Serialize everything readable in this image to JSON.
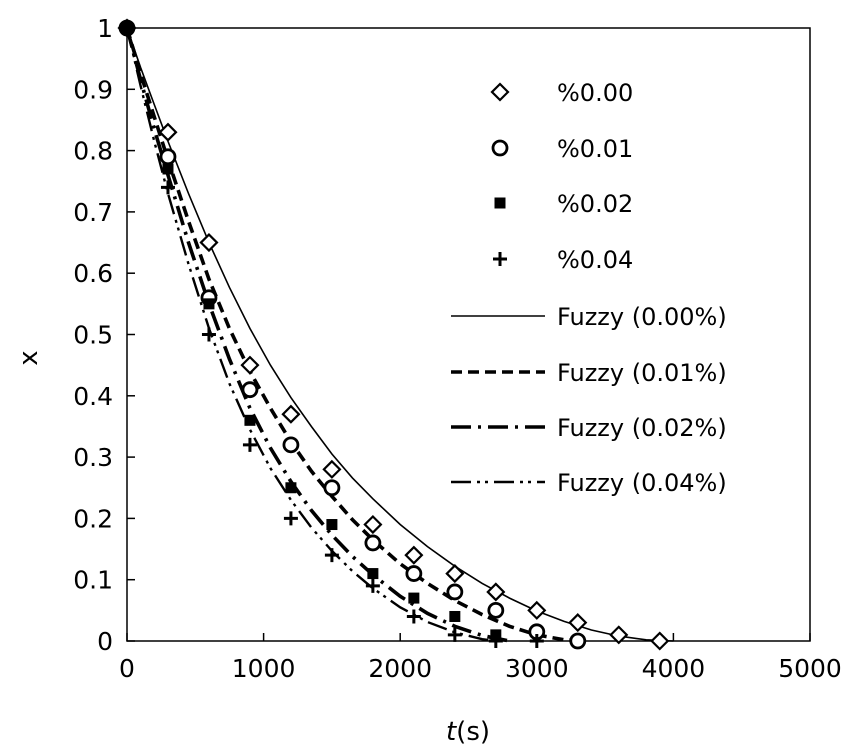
{
  "chart_data": {
    "type": "scatter",
    "xlabel_italic": "t",
    "xlabel_unit": "(s)",
    "ylabel": "x",
    "xlim": [
      0,
      5000
    ],
    "ylim": [
      0,
      1
    ],
    "xticks": [
      0,
      1000,
      2000,
      3000,
      4000,
      5000
    ],
    "yticks": [
      0,
      0.1,
      0.2,
      0.3,
      0.4,
      0.5,
      0.6,
      0.7,
      0.8,
      0.9,
      1
    ],
    "ytick_labels": [
      "0",
      "0.1",
      "0.2",
      "0.3",
      "0.4",
      "0.5",
      "0.6",
      "0.7",
      "0.8",
      "0.9",
      "1"
    ],
    "grid": false,
    "legend_position": "top-right",
    "series": [
      {
        "name": "%0.00",
        "marker": "diamond",
        "x": [
          0,
          300,
          600,
          900,
          1200,
          1500,
          1800,
          2100,
          2400,
          2700,
          3000,
          3300,
          3600,
          3900
        ],
        "y": [
          1.0,
          0.83,
          0.65,
          0.45,
          0.37,
          0.28,
          0.19,
          0.14,
          0.11,
          0.08,
          0.05,
          0.03,
          0.01,
          0.0
        ]
      },
      {
        "name": "%0.01",
        "marker": "circle",
        "x": [
          0,
          300,
          600,
          900,
          1200,
          1500,
          1800,
          2100,
          2400,
          2700,
          3000,
          3300
        ],
        "y": [
          1.0,
          0.79,
          0.56,
          0.41,
          0.32,
          0.25,
          0.16,
          0.11,
          0.08,
          0.05,
          0.015,
          0.0
        ]
      },
      {
        "name": "%0.02",
        "marker": "square",
        "x": [
          0,
          300,
          600,
          900,
          1200,
          1500,
          1800,
          2100,
          2400,
          2700
        ],
        "y": [
          1.0,
          0.77,
          0.55,
          0.36,
          0.25,
          0.19,
          0.11,
          0.07,
          0.04,
          0.01
        ]
      },
      {
        "name": "%0.04",
        "marker": "plus",
        "x": [
          0,
          300,
          600,
          900,
          1200,
          1500,
          1800,
          2100,
          2400,
          2700,
          3000
        ],
        "y": [
          1.0,
          0.74,
          0.5,
          0.32,
          0.2,
          0.14,
          0.09,
          0.04,
          0.01,
          0.0,
          0.0
        ]
      }
    ],
    "fits": [
      {
        "name": "Fuzzy (0.00%)",
        "dash": "solid",
        "x": [
          0,
          100,
          200,
          300,
          450,
          600,
          750,
          900,
          1050,
          1200,
          1350,
          1500,
          1650,
          1800,
          2000,
          2200,
          2400,
          2600,
          2800,
          3000,
          3200,
          3400,
          3600,
          3800,
          4000
        ],
        "y": [
          1.0,
          0.935,
          0.875,
          0.815,
          0.73,
          0.65,
          0.577,
          0.51,
          0.45,
          0.397,
          0.35,
          0.305,
          0.266,
          0.232,
          0.19,
          0.154,
          0.122,
          0.094,
          0.07,
          0.049,
          0.032,
          0.018,
          0.008,
          0.002,
          0.0
        ]
      },
      {
        "name": "Fuzzy (0.01%)",
        "dash": "dash",
        "x": [
          0,
          100,
          200,
          300,
          450,
          600,
          750,
          900,
          1050,
          1200,
          1350,
          1500,
          1650,
          1800,
          2000,
          2200,
          2400,
          2600,
          2800,
          3000,
          3200,
          3350
        ],
        "y": [
          1.0,
          0.925,
          0.855,
          0.785,
          0.685,
          0.59,
          0.51,
          0.44,
          0.38,
          0.325,
          0.277,
          0.236,
          0.198,
          0.165,
          0.126,
          0.094,
          0.066,
          0.043,
          0.024,
          0.01,
          0.002,
          0.0
        ]
      },
      {
        "name": "Fuzzy (0.02%)",
        "dash": "dashdot",
        "x": [
          0,
          100,
          200,
          300,
          450,
          600,
          750,
          900,
          1050,
          1200,
          1350,
          1500,
          1650,
          1800,
          2000,
          2200,
          2400,
          2600,
          2800
        ],
        "y": [
          1.0,
          0.915,
          0.835,
          0.76,
          0.65,
          0.55,
          0.46,
          0.38,
          0.315,
          0.26,
          0.213,
          0.173,
          0.138,
          0.108,
          0.073,
          0.045,
          0.024,
          0.009,
          0.0
        ]
      },
      {
        "name": "Fuzzy (0.04%)",
        "dash": "dashdotdot",
        "x": [
          0,
          100,
          200,
          300,
          450,
          600,
          750,
          900,
          1050,
          1200,
          1350,
          1500,
          1650,
          1800,
          2000,
          2200,
          2400,
          2600,
          2700
        ],
        "y": [
          1.0,
          0.905,
          0.815,
          0.73,
          0.615,
          0.51,
          0.42,
          0.345,
          0.282,
          0.23,
          0.185,
          0.147,
          0.114,
          0.086,
          0.055,
          0.031,
          0.014,
          0.003,
          0.0
        ]
      }
    ]
  }
}
